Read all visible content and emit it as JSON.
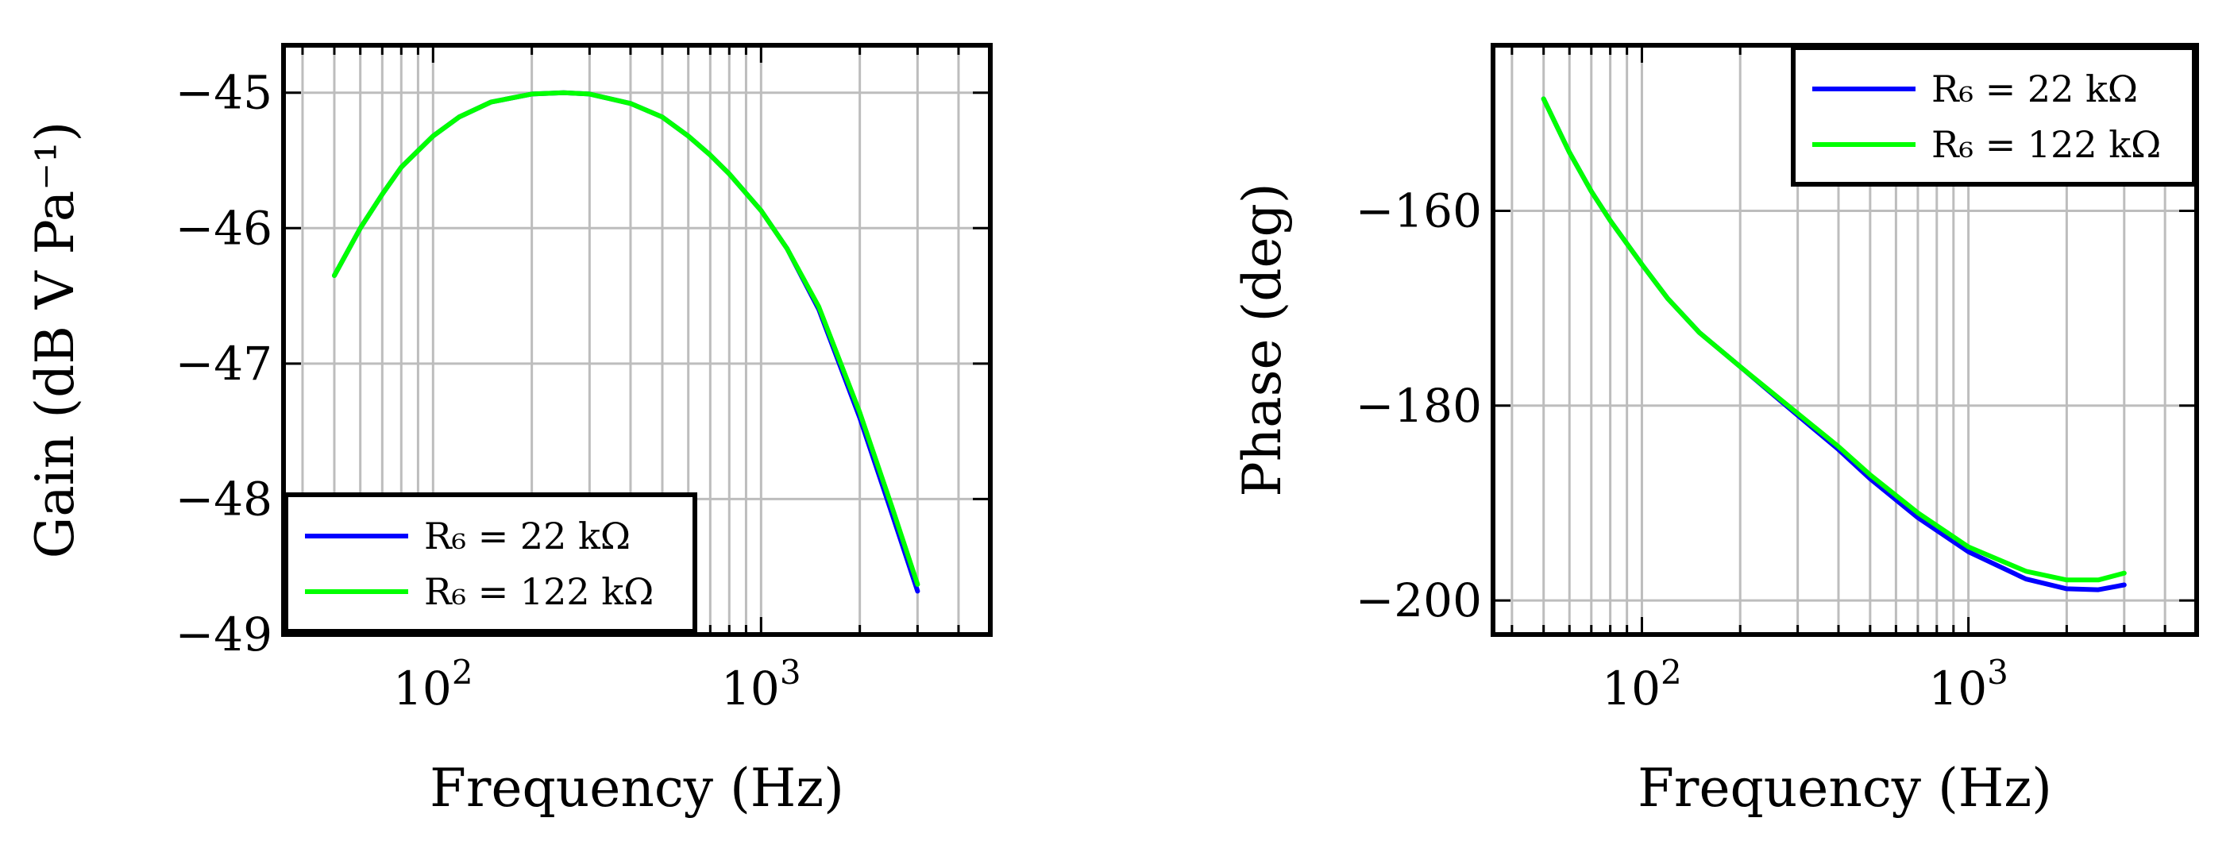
{
  "chart_data": [
    {
      "type": "line",
      "xscale": "log",
      "xlim": [
        35,
        5000
      ],
      "ylim": [
        -49,
        -44.65
      ],
      "xlabel": "Frequency (Hz)",
      "ylabel": "Gain (dB V Pa⁻¹)",
      "yticks": [
        -45,
        -46,
        -47,
        -48,
        -49
      ],
      "ytick_labels": [
        "−45",
        "−46",
        "−47",
        "−48",
        "−49"
      ],
      "xticks": [
        100,
        1000
      ],
      "xtick_labels": [
        {
          "base": "10",
          "exp": "2"
        },
        {
          "base": "10",
          "exp": "3"
        }
      ],
      "grid": true,
      "legend_position": "bottom-left",
      "series": [
        {
          "name": "R₆ = 22 kΩ",
          "color": "#0000ff",
          "x": [
            50,
            60,
            70,
            80,
            100,
            120,
            150,
            200,
            250,
            300,
            400,
            500,
            600,
            700,
            800,
            1000,
            1200,
            1500,
            2000,
            2500,
            3000
          ],
          "y": [
            -46.35,
            -46.0,
            -45.75,
            -45.55,
            -45.32,
            -45.18,
            -45.07,
            -45.01,
            -45.0,
            -45.01,
            -45.08,
            -45.18,
            -45.32,
            -45.46,
            -45.6,
            -45.87,
            -46.15,
            -46.6,
            -47.4,
            -48.1,
            -48.68
          ]
        },
        {
          "name": "R₆ = 122 kΩ",
          "color": "#00ff00",
          "x": [
            50,
            60,
            70,
            80,
            100,
            120,
            150,
            200,
            250,
            300,
            400,
            500,
            600,
            700,
            800,
            1000,
            1200,
            1500,
            2000,
            2500,
            3000
          ],
          "y": [
            -46.35,
            -46.0,
            -45.75,
            -45.55,
            -45.32,
            -45.18,
            -45.07,
            -45.01,
            -45.0,
            -45.01,
            -45.08,
            -45.18,
            -45.32,
            -45.46,
            -45.6,
            -45.87,
            -46.15,
            -46.58,
            -47.36,
            -48.05,
            -48.63
          ]
        }
      ]
    },
    {
      "type": "line",
      "xscale": "log",
      "xlim": [
        35,
        5000
      ],
      "ylim": [
        -203.5,
        -143
      ],
      "xlabel": "Frequency (Hz)",
      "ylabel": "Phase (deg)",
      "yticks": [
        -160,
        -180,
        -200
      ],
      "ytick_labels": [
        "−160",
        "−180",
        "−200"
      ],
      "xticks": [
        100,
        1000
      ],
      "xtick_labels": [
        {
          "base": "10",
          "exp": "2"
        },
        {
          "base": "10",
          "exp": "3"
        }
      ],
      "grid": true,
      "legend_position": "top-right",
      "series": [
        {
          "name": "R₆ = 22 kΩ",
          "color": "#0000ff",
          "x": [
            50,
            60,
            70,
            80,
            100,
            120,
            150,
            200,
            300,
            400,
            500,
            700,
            1000,
            1500,
            2000,
            2500,
            3000
          ],
          "y": [
            -148.5,
            -154.0,
            -158.0,
            -161.0,
            -165.5,
            -169.0,
            -172.5,
            -176.0,
            -181.0,
            -184.5,
            -187.5,
            -191.5,
            -195.0,
            -197.8,
            -198.8,
            -198.9,
            -198.4
          ]
        },
        {
          "name": "R₆ = 122 kΩ",
          "color": "#00ff00",
          "x": [
            50,
            60,
            70,
            80,
            100,
            120,
            150,
            200,
            300,
            400,
            500,
            700,
            1000,
            1500,
            2000,
            2500,
            3000
          ],
          "y": [
            -148.5,
            -154.0,
            -158.0,
            -161.0,
            -165.5,
            -169.0,
            -172.5,
            -176.0,
            -180.8,
            -184.2,
            -187.1,
            -191.0,
            -194.5,
            -197.0,
            -197.9,
            -197.9,
            -197.2
          ]
        }
      ]
    }
  ]
}
